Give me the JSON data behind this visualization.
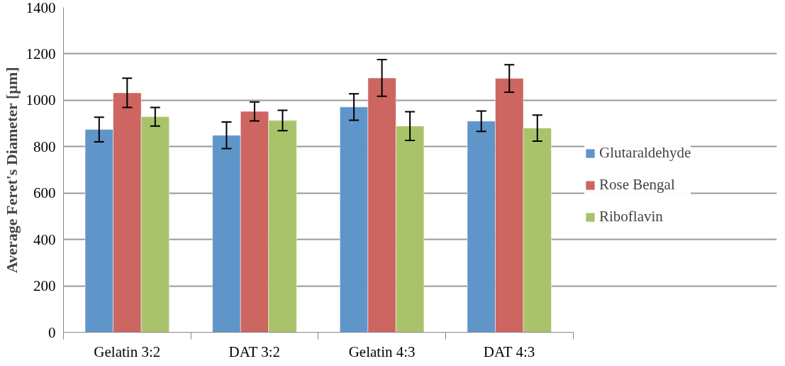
{
  "chart_data": {
    "type": "bar",
    "ylabel": "Average Feret's Diameter [µm]",
    "categories": [
      "Gelatin 3:2",
      "DAT 3:2",
      "Gelatin 4:3",
      "DAT 4:3"
    ],
    "series": [
      {
        "name": "Glutaraldehyde",
        "color": "#5f95c9",
        "values": [
          874,
          849,
          971,
          910
        ],
        "errors": [
          53,
          57,
          57,
          44
        ]
      },
      {
        "name": "Rose Bengal",
        "color": "#cd6560",
        "values": [
          1032,
          952,
          1096,
          1094
        ],
        "errors": [
          63,
          41,
          79,
          59
        ]
      },
      {
        "name": "Riboflavin",
        "color": "#a9c36b",
        "values": [
          929,
          913,
          889,
          880
        ],
        "errors": [
          40,
          44,
          62,
          56
        ]
      }
    ],
    "ylim": [
      0,
      1400
    ],
    "yticks": [
      0,
      200,
      400,
      600,
      800,
      1000,
      1200,
      1400
    ],
    "grid": "y",
    "legend": "right"
  }
}
